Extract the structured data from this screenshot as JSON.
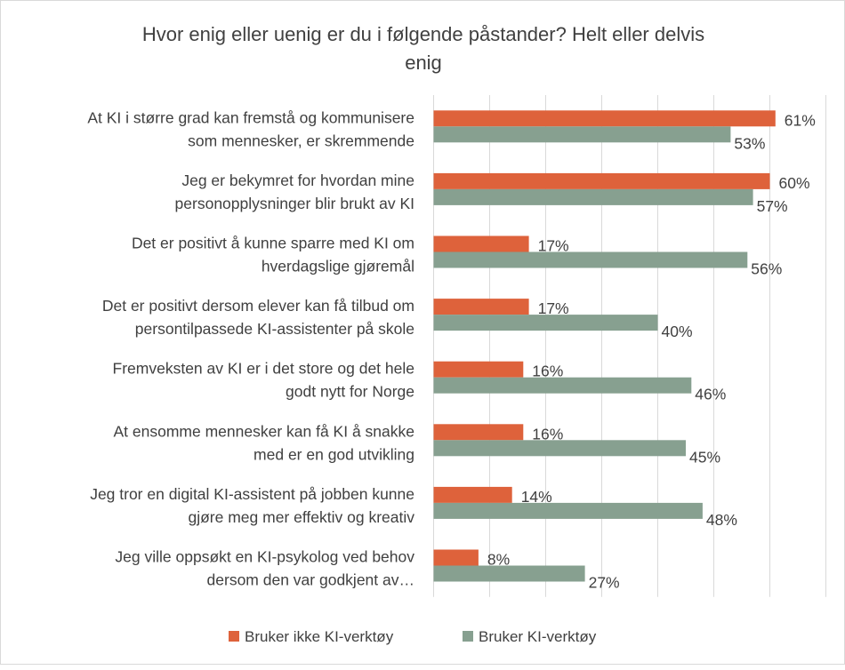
{
  "chart_data": {
    "type": "bar",
    "orientation": "horizontal",
    "title": "Hvor enig eller uenig er du i følgende påstander? Helt eller delvis enig",
    "title_lines": [
      "Hvor enig eller uenig er du i følgende påstander? Helt eller delvis",
      "enig"
    ],
    "categories": [
      [
        "At KI i større grad kan fremstå og kommunisere",
        "som mennesker, er skremmende"
      ],
      [
        "Jeg er bekymret for hvordan mine",
        "personopplysninger blir brukt av KI"
      ],
      [
        "Det er positivt å kunne sparre med KI om",
        "hverdagslige gjøremål"
      ],
      [
        "Det er positivt dersom elever kan få tilbud om",
        "persontilpassede KI-assistenter på skole"
      ],
      [
        "Fremveksten av KI er i det store og det hele",
        "godt nytt for Norge"
      ],
      [
        "At ensomme mennesker kan få KI å snakke",
        "med er en god utvikling"
      ],
      [
        "Jeg tror en digital KI-assistent på jobben kunne",
        "gjøre meg mer effektiv og kreativ"
      ],
      [
        "Jeg ville oppsøkt en KI-psykolog ved behov",
        "dersom den var godkjent av…"
      ]
    ],
    "series": [
      {
        "name": "Bruker ikke KI-verktøy",
        "color": "#DE623B",
        "values": [
          61,
          60,
          17,
          17,
          16,
          16,
          14,
          8
        ],
        "labels": [
          "61%",
          "60%",
          "17%",
          "17%",
          "16%",
          "16%",
          "14%",
          "8%"
        ]
      },
      {
        "name": "Bruker KI-verktøy",
        "color": "#87A090",
        "values": [
          53,
          57,
          56,
          40,
          46,
          45,
          48,
          27
        ],
        "labels": [
          "53%",
          "57%",
          "56%",
          "40%",
          "46%",
          "45%",
          "48%",
          "27%"
        ]
      }
    ],
    "xlim": [
      0,
      70
    ],
    "unit": "%",
    "grid": true,
    "gridline_step": 10,
    "axis_tick_labels_shown": false,
    "legend": "bottom"
  }
}
